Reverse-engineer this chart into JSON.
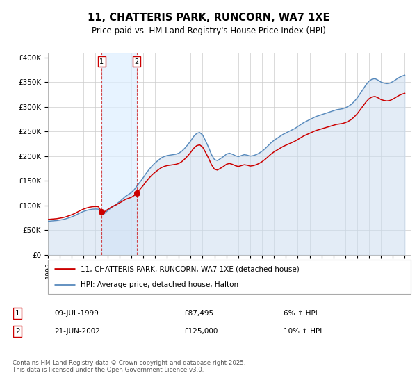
{
  "title": "11, CHATTERIS PARK, RUNCORN, WA7 1XE",
  "subtitle": "Price paid vs. HM Land Registry's House Price Index (HPI)",
  "ylabel_ticks": [
    "£0",
    "£50K",
    "£100K",
    "£150K",
    "£200K",
    "£250K",
    "£300K",
    "£350K",
    "£400K"
  ],
  "ytick_values": [
    0,
    50000,
    100000,
    150000,
    200000,
    250000,
    300000,
    350000,
    400000
  ],
  "ylim": [
    0,
    410000
  ],
  "legend_line1": "11, CHATTERIS PARK, RUNCORN, WA7 1XE (detached house)",
  "legend_line2": "HPI: Average price, detached house, Halton",
  "sale1_date": "09-JUL-1999",
  "sale1_price": "£87,495",
  "sale1_hpi": "6% ↑ HPI",
  "sale2_date": "21-JUN-2002",
  "sale2_price": "£125,000",
  "sale2_hpi": "10% ↑ HPI",
  "footer": "Contains HM Land Registry data © Crown copyright and database right 2025.\nThis data is licensed under the Open Government Licence v3.0.",
  "line_color_red": "#cc0000",
  "line_color_blue": "#5588bb",
  "fill_color_blue": "#ccddf0",
  "fill_color_between_sales": "#ddeeff",
  "grid_color": "#cccccc",
  "sale1_x": 1999.52,
  "sale2_x": 2002.47,
  "hpi_years": [
    1995.0,
    1995.25,
    1995.5,
    1995.75,
    1996.0,
    1996.25,
    1996.5,
    1996.75,
    1997.0,
    1997.25,
    1997.5,
    1997.75,
    1998.0,
    1998.25,
    1998.5,
    1998.75,
    1999.0,
    1999.25,
    1999.5,
    1999.75,
    2000.0,
    2000.25,
    2000.5,
    2000.75,
    2001.0,
    2001.25,
    2001.5,
    2001.75,
    2002.0,
    2002.25,
    2002.5,
    2002.75,
    2003.0,
    2003.25,
    2003.5,
    2003.75,
    2004.0,
    2004.25,
    2004.5,
    2004.75,
    2005.0,
    2005.25,
    2005.5,
    2005.75,
    2006.0,
    2006.25,
    2006.5,
    2006.75,
    2007.0,
    2007.25,
    2007.5,
    2007.75,
    2008.0,
    2008.25,
    2008.5,
    2008.75,
    2009.0,
    2009.25,
    2009.5,
    2009.75,
    2010.0,
    2010.25,
    2010.5,
    2010.75,
    2011.0,
    2011.25,
    2011.5,
    2011.75,
    2012.0,
    2012.25,
    2012.5,
    2012.75,
    2013.0,
    2013.25,
    2013.5,
    2013.75,
    2014.0,
    2014.25,
    2014.5,
    2014.75,
    2015.0,
    2015.25,
    2015.5,
    2015.75,
    2016.0,
    2016.25,
    2016.5,
    2016.75,
    2017.0,
    2017.25,
    2017.5,
    2017.75,
    2018.0,
    2018.25,
    2018.5,
    2018.75,
    2019.0,
    2019.25,
    2019.5,
    2019.75,
    2020.0,
    2020.25,
    2020.5,
    2020.75,
    2021.0,
    2021.25,
    2021.5,
    2021.75,
    2022.0,
    2022.25,
    2022.5,
    2022.75,
    2023.0,
    2023.25,
    2023.5,
    2023.75,
    2024.0,
    2024.25,
    2024.5,
    2024.75,
    2025.0
  ],
  "hpi_values": [
    68000,
    68500,
    69000,
    69500,
    70500,
    71500,
    73000,
    75000,
    77000,
    79500,
    82500,
    85500,
    88000,
    90000,
    91500,
    92500,
    92800,
    92500,
    83000,
    83500,
    89000,
    94000,
    98500,
    102500,
    107500,
    112500,
    118000,
    122000,
    126000,
    132000,
    140000,
    148000,
    156000,
    165000,
    173000,
    180000,
    186000,
    191000,
    196000,
    199000,
    201000,
    202000,
    203000,
    204000,
    206000,
    210000,
    216000,
    223000,
    231000,
    240000,
    246000,
    248000,
    243000,
    231000,
    218000,
    203000,
    193000,
    191000,
    195000,
    199000,
    204000,
    206000,
    204000,
    201000,
    199000,
    201000,
    203000,
    202000,
    200000,
    201000,
    203000,
    206000,
    210000,
    215000,
    221000,
    227000,
    232000,
    236000,
    240000,
    244000,
    247000,
    250000,
    253000,
    256000,
    260000,
    264000,
    268000,
    271000,
    274000,
    277000,
    280000,
    282000,
    284000,
    286000,
    288000,
    290000,
    292000,
    294000,
    295000,
    296000,
    298000,
    301000,
    305000,
    311000,
    318000,
    327000,
    336000,
    345000,
    352000,
    356000,
    357000,
    354000,
    350000,
    348000,
    347000,
    348000,
    351000,
    355000,
    359000,
    362000,
    364000
  ],
  "property_values": [
    87495,
    125000
  ],
  "xmin": 1995.0,
  "xmax": 2025.5
}
